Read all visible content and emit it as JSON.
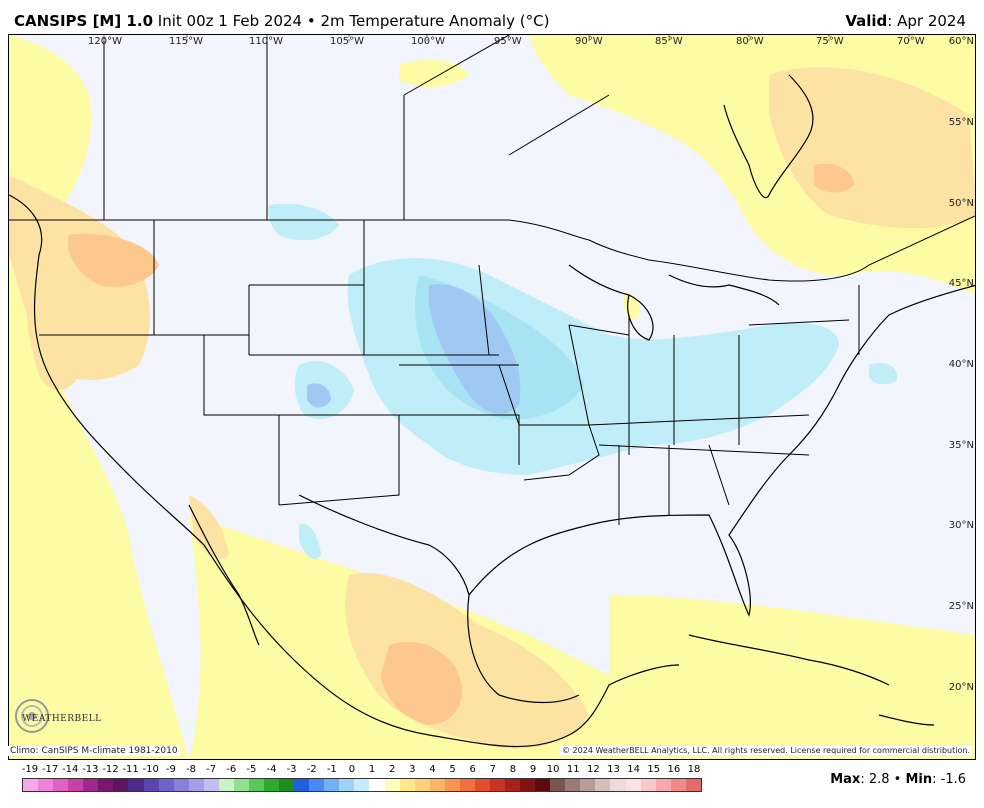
{
  "header": {
    "model": "CANSIPS [M] 1.0",
    "init": "Init 00z 1 Feb 2024 • 2m Temperature Anomaly (°C)",
    "valid_label": "Valid",
    "valid_value": ": Apr 2024"
  },
  "map": {
    "lon_labels": [
      "120°W",
      "115°W",
      "110°W",
      "105°W",
      "100°W",
      "95°W",
      "90°W",
      "85°W",
      "80°W",
      "75°W",
      "70°W"
    ],
    "lat_labels": [
      "60°N",
      "55°N",
      "50°N",
      "45°N",
      "40°N",
      "35°N",
      "30°N",
      "25°N",
      "20°N"
    ],
    "colors": {
      "ocean_land_neutral": "#f2f5fd",
      "warm_light": "#fdfba4",
      "warm_mid": "#fde3a3",
      "warm_orange": "#fcc88e",
      "cool_light": "#c0eef8",
      "cool_mid": "#a8e3f3",
      "cool_blue": "#9fc8f2"
    }
  },
  "footer": {
    "climo": "Climo: CanSIPS M-climate 1981-2010",
    "copyright": "© 2024 WeatherBELL Analytics, LLC. All rights reserved. License required for commercial distribution.",
    "logo_text": "WEATHERBELL"
  },
  "scale": {
    "labels": [
      "-19",
      "-17",
      "-14",
      "-13",
      "-12",
      "-11",
      "-10",
      "-9",
      "-8",
      "-7",
      "-6",
      "-5",
      "-4",
      "-3",
      "-2",
      "-1",
      "0",
      "1",
      "2",
      "3",
      "4",
      "5",
      "6",
      "7",
      "8",
      "9",
      "10",
      "11",
      "12",
      "13",
      "14",
      "15",
      "16",
      "18"
    ],
    "colors": [
      "#f7a8e6",
      "#f080d8",
      "#e060c4",
      "#c840a8",
      "#a0288c",
      "#7a1670",
      "#5c1660",
      "#4c2a88",
      "#5b45b0",
      "#6e62cc",
      "#8680dc",
      "#a49ee8",
      "#c2bef2",
      "#c8f2c8",
      "#90e090",
      "#58c858",
      "#2eaa2e",
      "#1c8c1c",
      "#2060e0",
      "#4a8af0",
      "#74b0f4",
      "#a0d2f8",
      "#c6ecfb",
      "#ffffff",
      "#fffcc0",
      "#fde98a",
      "#fdd27a",
      "#fbb564",
      "#f79452",
      "#f07040",
      "#e24e2e",
      "#c83424",
      "#a6221c",
      "#801414",
      "#5c0c0c",
      "#7a5550",
      "#9a7a74",
      "#b89c96",
      "#d4bfba",
      "#ecdcd8",
      "#fbe2e2",
      "#f8c8c8",
      "#f4aaaa",
      "#ee8a8a",
      "#e26a6a"
    ],
    "stats_max_label": "Max",
    "stats_max": ": 2.8",
    "stats_sep": " • ",
    "stats_min_label": "Min",
    "stats_min": ": -1.6"
  }
}
